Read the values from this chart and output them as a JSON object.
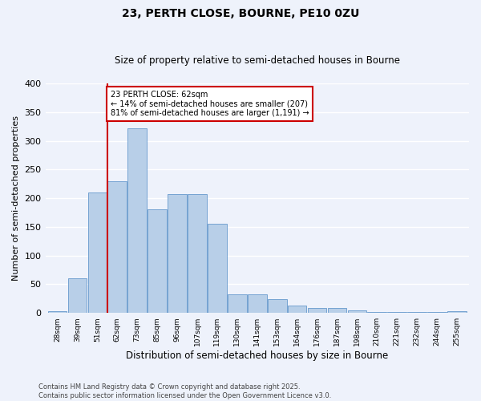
{
  "title1": "23, PERTH CLOSE, BOURNE, PE10 0ZU",
  "title2": "Size of property relative to semi-detached houses in Bourne",
  "xlabel": "Distribution of semi-detached houses by size in Bourne",
  "ylabel": "Number of semi-detached properties",
  "bin_labels": [
    "28sqm",
    "39sqm",
    "51sqm",
    "62sqm",
    "73sqm",
    "85sqm",
    "96sqm",
    "107sqm",
    "119sqm",
    "130sqm",
    "141sqm",
    "153sqm",
    "164sqm",
    "176sqm",
    "187sqm",
    "198sqm",
    "210sqm",
    "221sqm",
    "232sqm",
    "244sqm",
    "255sqm"
  ],
  "bar_values": [
    3,
    60,
    210,
    230,
    322,
    181,
    207,
    207,
    155,
    33,
    33,
    24,
    13,
    9,
    9,
    5,
    2,
    1,
    1,
    1,
    3
  ],
  "bar_color": "#b8cfe8",
  "bar_edge_color": "#6699cc",
  "vline_color": "#cc0000",
  "annotation_text": "23 PERTH CLOSE: 62sqm\n← 14% of semi-detached houses are smaller (207)\n81% of semi-detached houses are larger (1,191) →",
  "annotation_box_facecolor": "#ffffff",
  "annotation_box_edgecolor": "#cc0000",
  "footer1": "Contains HM Land Registry data © Crown copyright and database right 2025.",
  "footer2": "Contains public sector information licensed under the Open Government Licence v3.0.",
  "ylim": [
    0,
    400
  ],
  "yticks": [
    0,
    50,
    100,
    150,
    200,
    250,
    300,
    350,
    400
  ],
  "background_color": "#eef2fb",
  "grid_color": "#ffffff"
}
